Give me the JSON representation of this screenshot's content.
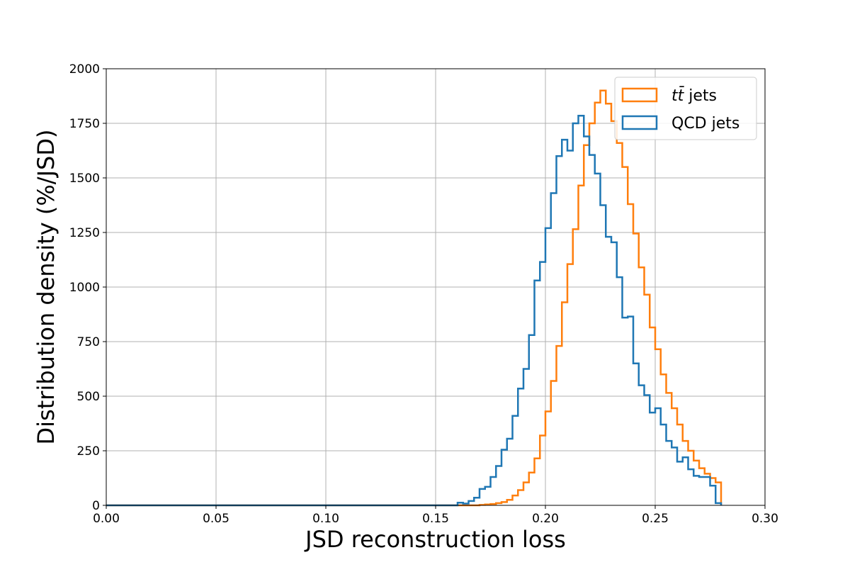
{
  "chart_data": {
    "type": "histogram",
    "xlabel": "JSD reconstruction loss",
    "ylabel": "Distribution density (%/JSD)",
    "xlim": [
      0.0,
      0.3
    ],
    "ylim": [
      0,
      2000
    ],
    "x_ticks": [
      "0.00",
      "0.05",
      "0.10",
      "0.15",
      "0.20",
      "0.25",
      "0.30"
    ],
    "y_ticks": [
      "0",
      "250",
      "500",
      "750",
      "1000",
      "1250",
      "1500",
      "1750",
      "2000"
    ],
    "grid": true,
    "legend_position": "top-right",
    "bin_width": 0.0025,
    "bin_start": 0.16,
    "series": [
      {
        "name": "t̅t jets",
        "legend_main": "tt̄",
        "legend_suffix": " jets",
        "color": "#ff7f0e",
        "values": [
          0,
          0,
          0,
          0,
          2,
          4,
          6,
          10,
          15,
          25,
          45,
          70,
          105,
          150,
          215,
          320,
          430,
          570,
          730,
          930,
          1105,
          1265,
          1465,
          1650,
          1750,
          1845,
          1900,
          1840,
          1760,
          1660,
          1550,
          1380,
          1245,
          1090,
          965,
          815,
          715,
          600,
          515,
          445,
          370,
          295,
          250,
          205,
          170,
          145,
          125,
          105
        ]
      },
      {
        "name": "QCD jets",
        "legend_main": "QCD jets",
        "legend_suffix": "",
        "color": "#1f77b4",
        "values": [
          12,
          8,
          20,
          35,
          75,
          85,
          130,
          180,
          255,
          305,
          410,
          535,
          625,
          780,
          1030,
          1115,
          1270,
          1430,
          1600,
          1675,
          1625,
          1750,
          1785,
          1690,
          1605,
          1520,
          1375,
          1230,
          1205,
          1045,
          860,
          865,
          650,
          550,
          505,
          425,
          445,
          370,
          295,
          265,
          200,
          220,
          165,
          135,
          130,
          130,
          90,
          10
        ]
      }
    ]
  }
}
